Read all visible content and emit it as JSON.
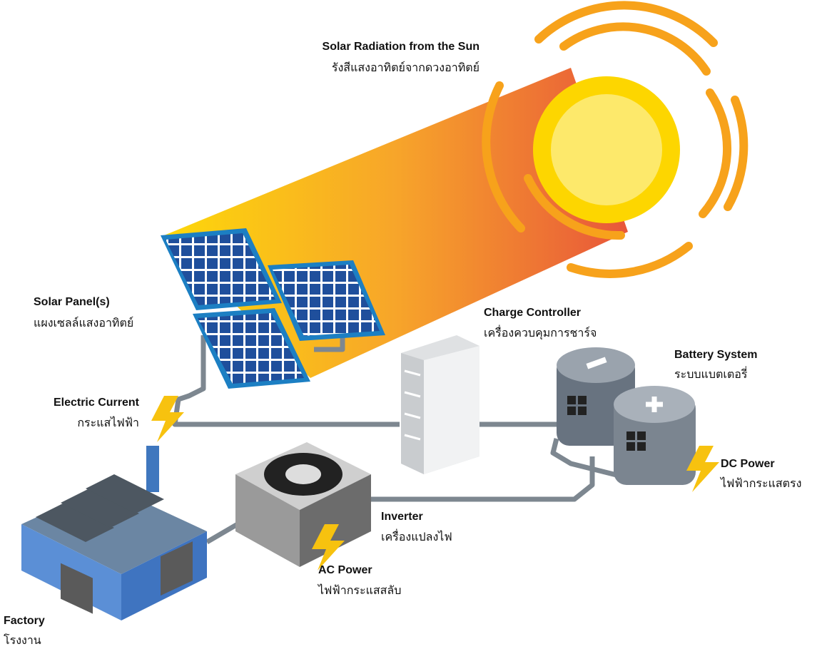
{
  "labels": [
    {
      "en": "Solar Radiation from the Sun",
      "th": "รังสีแสงอาทิตย์จากดวงอาทิตย์"
    },
    {
      "en": "Solar Panel(s)",
      "th": "แผงเซลล์แสงอาทิตย์"
    },
    {
      "en": "Charge Controller",
      "th": "เครื่องควบคุมการชาร์จ"
    },
    {
      "en": "Battery System",
      "th": "ระบบแบตเตอรี่"
    },
    {
      "en": "Electric Current",
      "th": "กระแสไฟฟ้า"
    },
    {
      "en": "DC Power",
      "th": "ไฟฟ้ากระแสตรง"
    },
    {
      "en": "Inverter",
      "th": "เครื่องแปลงไฟ"
    },
    {
      "en": "AC Power",
      "th": "ไฟฟ้ากระแสสลับ"
    },
    {
      "en": "Factory",
      "th": "โรงงาน"
    }
  ]
}
